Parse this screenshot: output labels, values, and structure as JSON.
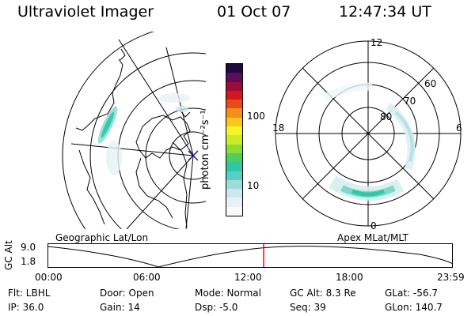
{
  "header": {
    "instrument": "Ultraviolet Imager",
    "date": "01 Oct 07",
    "time": "12:47:34 UT"
  },
  "colorbar": {
    "label": "photon cm⁻²s⁻¹",
    "ticks": [
      "100",
      "10"
    ],
    "colors": [
      "#fafafa",
      "#e8f2f6",
      "#cde8ec",
      "#9fdcd8",
      "#56d0c6",
      "#2ec8a8",
      "#4ece5e",
      "#8cdc32",
      "#c8ec2a",
      "#f4f428",
      "#f8c818",
      "#f4901a",
      "#ea4a18",
      "#d4161e",
      "#9c0c38",
      "#5c0c5a",
      "#1e0a3e"
    ]
  },
  "polar": {
    "labels": {
      "top": "12",
      "bottom": "0",
      "left": "18",
      "right": "6",
      "lat60": "60",
      "lat70": "70",
      "lat80": "80"
    }
  },
  "timeline": {
    "left_title": "Geographic Lat/Lon",
    "right_title": "Apex MLat/MLT",
    "yaxis": "GC Alt",
    "ytick_top": "9.0",
    "ytick_bottom": "1.8",
    "xticks": [
      "00:00",
      "06:00",
      "12:00",
      "18:00",
      "23:59"
    ],
    "marker_color": "#ff0000"
  },
  "info": {
    "filter": "Flt: LBHL",
    "ip": "IP: 36.0",
    "door": "Door: Open",
    "gain": "Gain: 14",
    "mode": "Mode: Normal",
    "dsp": "Dsp:    -5.0",
    "gcalt": "GC Alt: 8.3 Re",
    "seq": "Seq: 39",
    "glat": "GLat: -56.7",
    "glon": "GLon: 140.7"
  }
}
